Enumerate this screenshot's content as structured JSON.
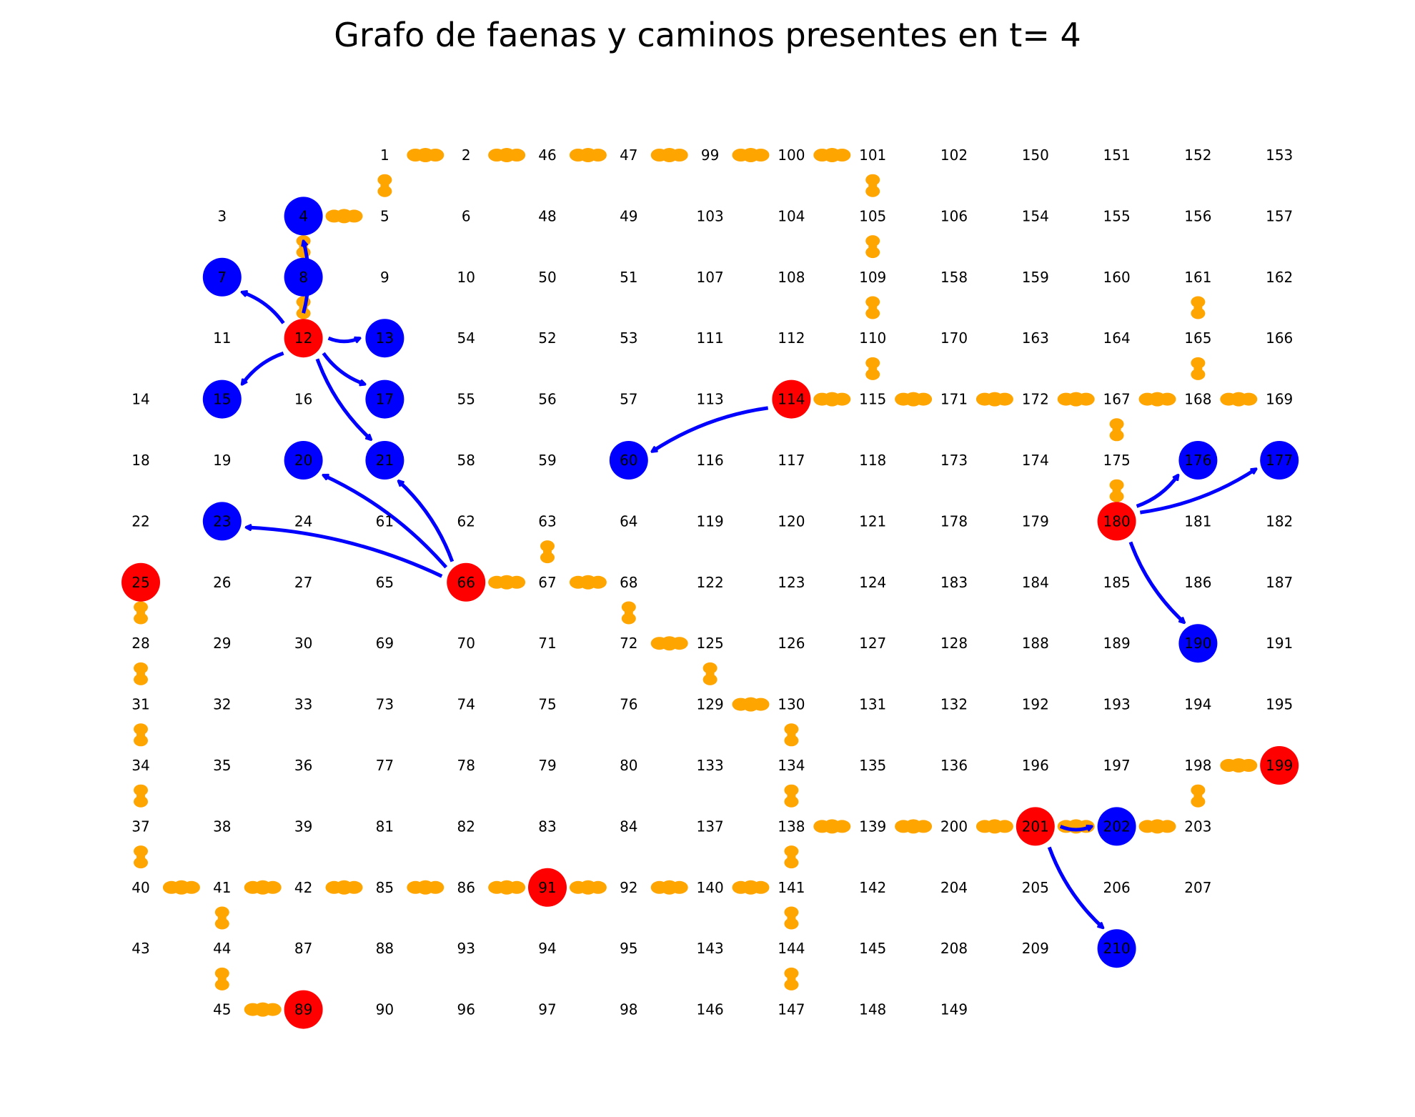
{
  "title": "Grafo de faenas y caminos presentes en t= 4",
  "colors": {
    "background": "#ffffff",
    "road": "#ffa500",
    "active_faena": "#ff0000",
    "target_node": "#0000ff",
    "arrow": "#0000ff",
    "label": "#000000"
  },
  "grid": {
    "rows": [
      [
        null,
        null,
        null,
        "1",
        "2",
        "46",
        "47",
        "99",
        "100",
        "101",
        "102",
        "150",
        "151",
        "152",
        "153"
      ],
      [
        null,
        "3",
        "4",
        "5",
        "6",
        "48",
        "49",
        "103",
        "104",
        "105",
        "106",
        "154",
        "155",
        "156",
        "157"
      ],
      [
        null,
        "7",
        "8",
        "9",
        "10",
        "50",
        "51",
        "107",
        "108",
        "109",
        "158",
        "159",
        "160",
        "161",
        "162"
      ],
      [
        null,
        "11",
        "12",
        "13",
        "54",
        "52",
        "53",
        "111",
        "112",
        "110",
        "170",
        "163",
        "164",
        "165",
        "166"
      ],
      [
        "14",
        "15",
        "16",
        "17",
        "55",
        "56",
        "57",
        "113",
        "114",
        "115",
        "171",
        "172",
        "167",
        "168",
        "169"
      ],
      [
        "18",
        "19",
        "20",
        "21",
        "58",
        "59",
        "60",
        "116",
        "117",
        "118",
        "173",
        "174",
        "175",
        "176",
        "177"
      ],
      [
        "22",
        "23",
        "24",
        "61",
        "62",
        "63",
        "64",
        "119",
        "120",
        "121",
        "178",
        "179",
        "180",
        "181",
        "182"
      ],
      [
        "25",
        "26",
        "27",
        "65",
        "66",
        "67",
        "68",
        "122",
        "123",
        "124",
        "183",
        "184",
        "185",
        "186",
        "187"
      ],
      [
        "28",
        "29",
        "30",
        "69",
        "70",
        "71",
        "72",
        "125",
        "126",
        "127",
        "128",
        "188",
        "189",
        "190",
        "191"
      ],
      [
        "31",
        "32",
        "33",
        "73",
        "74",
        "75",
        "76",
        "129",
        "130",
        "131",
        "132",
        "192",
        "193",
        "194",
        "195"
      ],
      [
        "34",
        "35",
        "36",
        "77",
        "78",
        "79",
        "80",
        "133",
        "134",
        "135",
        "136",
        "196",
        "197",
        "198",
        "199"
      ],
      [
        "37",
        "38",
        "39",
        "81",
        "82",
        "83",
        "84",
        "137",
        "138",
        "139",
        "200",
        "201",
        "202",
        "203",
        null
      ],
      [
        "40",
        "41",
        "42",
        "85",
        "86",
        "91",
        "92",
        "140",
        "141",
        "142",
        "204",
        "205",
        "206",
        "207",
        null
      ],
      [
        "43",
        "44",
        "87",
        "88",
        "93",
        "94",
        "95",
        "143",
        "144",
        "145",
        "208",
        "209",
        "210",
        null,
        null
      ],
      [
        null,
        "45",
        "89",
        "90",
        "96",
        "97",
        "98",
        "146",
        "147",
        "148",
        "149",
        null,
        null,
        null,
        null
      ]
    ]
  },
  "active_faenas": [
    "12",
    "25",
    "66",
    "89",
    "91",
    "114",
    "180",
    "199",
    "201"
  ],
  "target_nodes": [
    "4",
    "7",
    "8",
    "13",
    "15",
    "17",
    "20",
    "21",
    "23",
    "60",
    "176",
    "177",
    "190",
    "202",
    "210"
  ],
  "roads": [
    [
      "1",
      "2"
    ],
    [
      "2",
      "46"
    ],
    [
      "46",
      "47"
    ],
    [
      "47",
      "99"
    ],
    [
      "99",
      "100"
    ],
    [
      "100",
      "101"
    ],
    [
      "1",
      "5"
    ],
    [
      "4",
      "5"
    ],
    [
      "4",
      "8"
    ],
    [
      "8",
      "12"
    ],
    [
      "101",
      "105"
    ],
    [
      "105",
      "109"
    ],
    [
      "109",
      "110"
    ],
    [
      "110",
      "115"
    ],
    [
      "114",
      "115"
    ],
    [
      "115",
      "171"
    ],
    [
      "171",
      "172"
    ],
    [
      "172",
      "167"
    ],
    [
      "167",
      "168"
    ],
    [
      "168",
      "169"
    ],
    [
      "165",
      "168"
    ],
    [
      "161",
      "165"
    ],
    [
      "167",
      "175"
    ],
    [
      "175",
      "180"
    ],
    [
      "66",
      "67"
    ],
    [
      "67",
      "68"
    ],
    [
      "63",
      "67"
    ],
    [
      "68",
      "72"
    ],
    [
      "72",
      "125"
    ],
    [
      "125",
      "129"
    ],
    [
      "129",
      "130"
    ],
    [
      "130",
      "134"
    ],
    [
      "134",
      "138"
    ],
    [
      "138",
      "139"
    ],
    [
      "139",
      "200"
    ],
    [
      "200",
      "201"
    ],
    [
      "201",
      "202"
    ],
    [
      "202",
      "203"
    ],
    [
      "198",
      "203"
    ],
    [
      "198",
      "199"
    ],
    [
      "138",
      "141"
    ],
    [
      "141",
      "144"
    ],
    [
      "144",
      "147"
    ],
    [
      "25",
      "28"
    ],
    [
      "28",
      "31"
    ],
    [
      "31",
      "34"
    ],
    [
      "34",
      "37"
    ],
    [
      "37",
      "40"
    ],
    [
      "40",
      "41"
    ],
    [
      "41",
      "42"
    ],
    [
      "42",
      "85"
    ],
    [
      "85",
      "86"
    ],
    [
      "86",
      "91"
    ],
    [
      "91",
      "92"
    ],
    [
      "92",
      "140"
    ],
    [
      "140",
      "141"
    ],
    [
      "41",
      "44"
    ],
    [
      "44",
      "45"
    ],
    [
      "45",
      "89"
    ]
  ],
  "arrows": [
    {
      "from": "12",
      "to": "4",
      "curve": 0.08
    },
    {
      "from": "12",
      "to": "7",
      "curve": 0.08
    },
    {
      "from": "12",
      "to": "13",
      "curve": 0.08
    },
    {
      "from": "12",
      "to": "15",
      "curve": 0.08
    },
    {
      "from": "12",
      "to": "17",
      "curve": 0.08
    },
    {
      "from": "12",
      "to": "21",
      "curve": 0.08
    },
    {
      "from": "66",
      "to": "23",
      "curve": 0.08
    },
    {
      "from": "66",
      "to": "20",
      "curve": 0.08
    },
    {
      "from": "66",
      "to": "21",
      "curve": 0.08
    },
    {
      "from": "114",
      "to": "60",
      "curve": 0.08
    },
    {
      "from": "180",
      "to": "176",
      "curve": 0.08
    },
    {
      "from": "180",
      "to": "177",
      "curve": 0.08
    },
    {
      "from": "180",
      "to": "190",
      "curve": 0.08
    },
    {
      "from": "201",
      "to": "202",
      "curve": 0.08
    },
    {
      "from": "201",
      "to": "210",
      "curve": 0.08
    }
  ]
}
